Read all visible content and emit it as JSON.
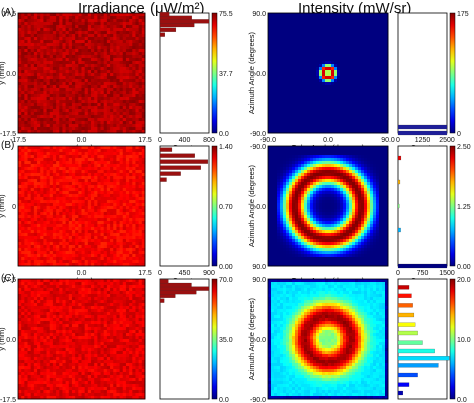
{
  "header": {
    "irradiance_title": "Irradiance",
    "irradiance_units": "(μW/m²)",
    "intensity_title": "Intensity (mW/sr)"
  },
  "chart_data": [
    {
      "type": "heatmap",
      "panel": "A",
      "quantity": "irradiance",
      "xlabel": "x (mm)",
      "ylabel": "y (mm)",
      "xlim": [
        -17.5,
        17.5
      ],
      "ylim": [
        -17.5,
        17.5
      ],
      "xticks": [
        "-17.5",
        "0.0",
        "17.5"
      ],
      "yticks": [
        "-17.5",
        "0.0",
        "17.5"
      ],
      "colorbar_ticks": [
        "0.0",
        "37.7",
        "75.5"
      ],
      "colorbar_max": 75.5,
      "pattern": "uniform",
      "level": 0.95,
      "histogram": {
        "xlabel": "Counts",
        "xticks": [
          "0",
          "400",
          "800"
        ],
        "xmax": 800,
        "bins": [
          {
            "value": 0.82,
            "count": 80
          },
          {
            "value": 0.86,
            "count": 260
          },
          {
            "value": 0.9,
            "count": 560
          },
          {
            "value": 0.93,
            "count": 800
          },
          {
            "value": 0.96,
            "count": 520
          },
          {
            "value": 0.99,
            "count": 150
          }
        ]
      }
    },
    {
      "type": "heatmap",
      "panel": "A",
      "quantity": "intensity",
      "xlabel": "Polar Angle (degrees)",
      "ylabel": "Azimuth Angle (degrees)",
      "xlim": [
        -90,
        90
      ],
      "ylim": [
        -90,
        90
      ],
      "xticks": [
        "-90.0",
        "0.0",
        "90.0"
      ],
      "yticks": [
        "-90.0",
        "0.0",
        "90.0"
      ],
      "colorbar_ticks": [
        "0",
        "175"
      ],
      "colorbar_max": 250,
      "pattern": "small-ring",
      "ring_radius_deg": 8,
      "background_level": 0,
      "histogram": {
        "xlabel": "Counts",
        "xticks": [
          "0",
          "1250",
          "2500"
        ],
        "xmax": 2500,
        "bins": [
          {
            "value": 0.0,
            "count": 2500
          },
          {
            "value": 0.05,
            "count": 2500
          }
        ]
      }
    },
    {
      "type": "heatmap",
      "panel": "B",
      "quantity": "irradiance",
      "xlabel": "x (mm)",
      "ylabel": "y (mm)",
      "xlim": [
        -17.5,
        17.5
      ],
      "ylim": [
        -17.5,
        17.5
      ],
      "xticks": [
        "",
        "0.0",
        "17.5"
      ],
      "yticks": [
        "",
        "0",
        ""
      ],
      "colorbar_ticks": [
        "0.00",
        "0.70",
        "1.40"
      ],
      "colorbar_max": 1.4,
      "pattern": "uniform",
      "level": 0.88,
      "histogram": {
        "xlabel": "Counts",
        "xticks": [
          "0",
          "450",
          "900"
        ],
        "xmax": 900,
        "bins": [
          {
            "value": 0.72,
            "count": 120
          },
          {
            "value": 0.77,
            "count": 380
          },
          {
            "value": 0.82,
            "count": 750
          },
          {
            "value": 0.87,
            "count": 880
          },
          {
            "value": 0.92,
            "count": 640
          },
          {
            "value": 0.97,
            "count": 220
          }
        ]
      }
    },
    {
      "type": "heatmap",
      "panel": "B",
      "quantity": "intensity",
      "xlabel": "Polar Angle (degrees)",
      "ylabel": "Azimuth Angle (degrees)",
      "xlim": [
        -90,
        90
      ],
      "ylim": [
        -90,
        90
      ],
      "xticks": [
        "",
        "",
        ""
      ],
      "yticks": [
        "90.0",
        "0.0",
        "-90.0"
      ],
      "colorbar_ticks": [
        "0.00",
        "1.25",
        "2.50"
      ],
      "colorbar_max": 2.5,
      "pattern": "large-ring",
      "ring_radius_deg": 50,
      "background_level": 0,
      "histogram": {
        "xlabel": "Counts",
        "xticks": [
          "0",
          "750",
          "1500"
        ],
        "xmax": 1500,
        "bins": [
          {
            "value": 0.0,
            "count": 1500
          },
          {
            "value": 0.3,
            "count": 80
          },
          {
            "value": 0.5,
            "count": 40
          },
          {
            "value": 0.7,
            "count": 60
          },
          {
            "value": 0.9,
            "count": 90
          }
        ]
      }
    },
    {
      "type": "heatmap",
      "panel": "C",
      "quantity": "irradiance",
      "xlabel": "x (mm)",
      "ylabel": "y (mm)",
      "xlim": [
        -17.5,
        17.5
      ],
      "ylim": [
        -17.5,
        17.5
      ],
      "xticks": [
        "-17.5",
        "0.0",
        "17.5"
      ],
      "yticks": [
        "-17.5",
        "0.0",
        "17.5"
      ],
      "colorbar_ticks": [
        "0.0",
        "35.0",
        "70.0"
      ],
      "colorbar_max": 70.0,
      "pattern": "uniform",
      "level": 0.9,
      "histogram": {
        "xlabel": "Counts",
        "xticks": [
          "0",
          "350",
          "700"
        ],
        "xmax": 700,
        "bins": [
          {
            "value": 0.82,
            "count": 60
          },
          {
            "value": 0.86,
            "count": 220
          },
          {
            "value": 0.89,
            "count": 520
          },
          {
            "value": 0.92,
            "count": 700
          },
          {
            "value": 0.95,
            "count": 450
          },
          {
            "value": 0.98,
            "count": 120
          }
        ]
      }
    },
    {
      "type": "heatmap",
      "panel": "C",
      "quantity": "intensity",
      "xlabel": "Polar Angle (degrees)",
      "ylabel": "Azimuth Angle (degrees)",
      "xlim": [
        -90,
        90
      ],
      "ylim": [
        -90,
        90
      ],
      "xticks": [
        "-90.0",
        "0.0",
        "90.0"
      ],
      "yticks": [
        "-90.0",
        "0.0",
        "90.0"
      ],
      "colorbar_ticks": [
        "0.0",
        "10.0",
        "20.0"
      ],
      "colorbar_max": 20.0,
      "pattern": "ring-on-background",
      "ring_radius_deg": 35,
      "background_level": 0.35,
      "histogram": {
        "xlabel": "Counts",
        "xticks": [
          "0",
          "200",
          "400"
        ],
        "xmax": 400,
        "bins": [
          {
            "value": 0.05,
            "count": 40
          },
          {
            "value": 0.12,
            "count": 90
          },
          {
            "value": 0.2,
            "count": 160
          },
          {
            "value": 0.28,
            "count": 330
          },
          {
            "value": 0.34,
            "count": 420
          },
          {
            "value": 0.4,
            "count": 300
          },
          {
            "value": 0.47,
            "count": 200
          },
          {
            "value": 0.55,
            "count": 160
          },
          {
            "value": 0.62,
            "count": 140
          },
          {
            "value": 0.7,
            "count": 130
          },
          {
            "value": 0.78,
            "count": 120
          },
          {
            "value": 0.86,
            "count": 110
          },
          {
            "value": 0.93,
            "count": 90
          }
        ]
      }
    }
  ],
  "panel_labels": [
    "(A)",
    "(B)",
    "(C)"
  ]
}
